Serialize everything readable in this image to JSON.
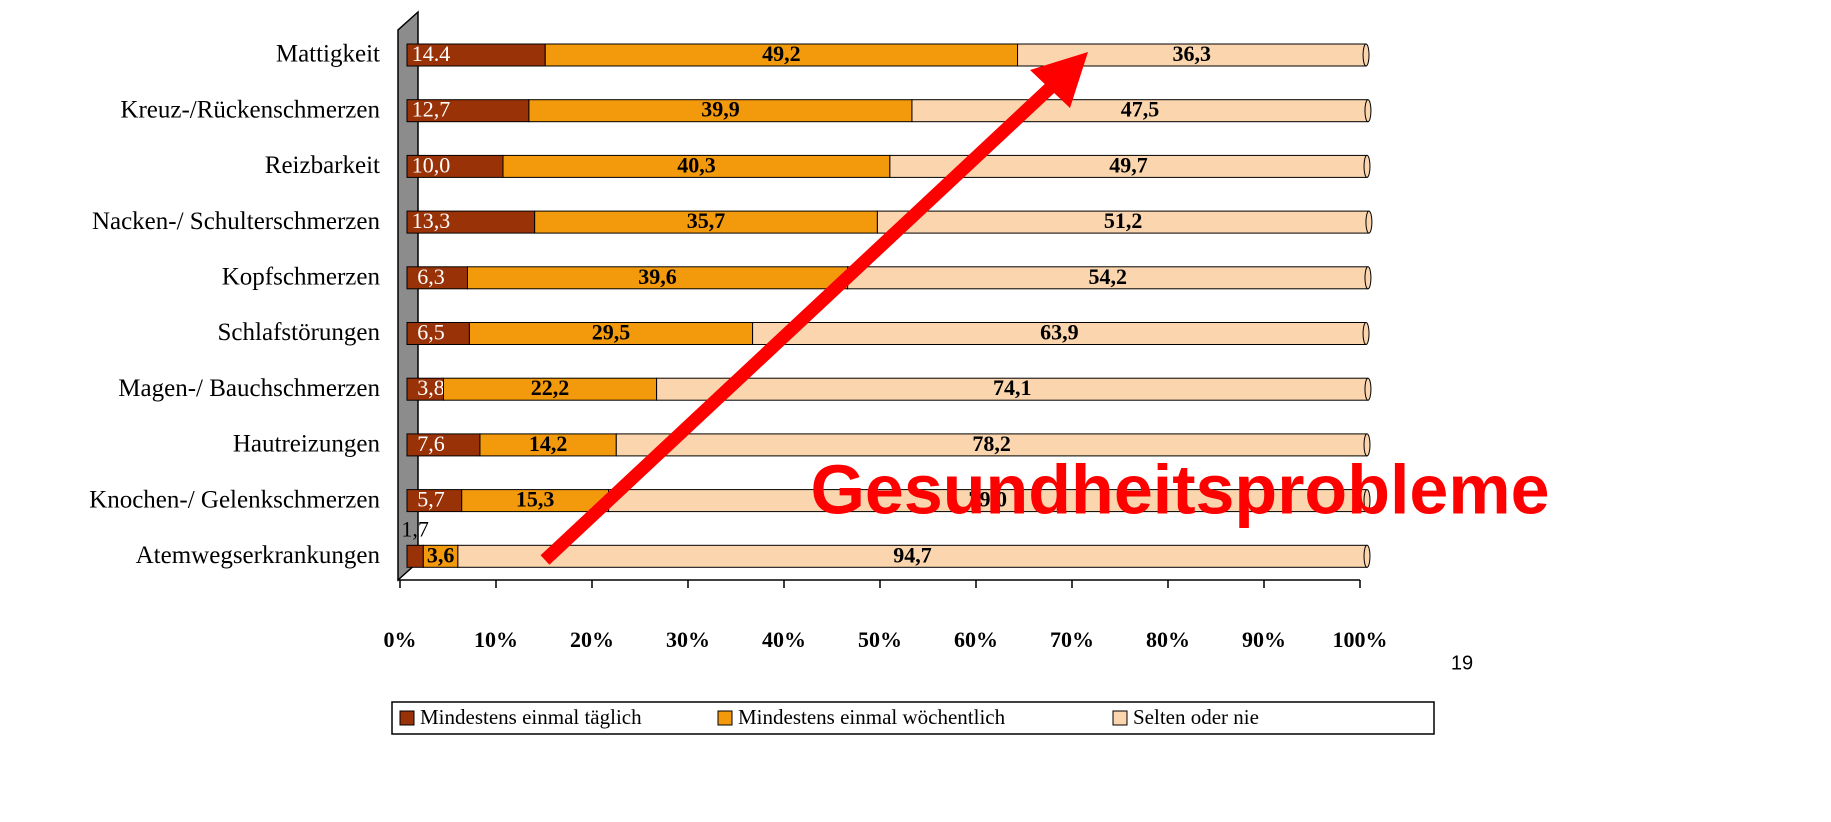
{
  "chart_data": {
    "type": "stacked-bar-horizontal",
    "categories": [
      "Mattigkeit",
      "Kreuz-/Rückenschmerzen",
      "Reizbarkeit",
      "Nacken-/ Schulterschmerzen",
      "Kopfschmerzen",
      "Schlafstörungen",
      "Magen-/ Bauchschmerzen",
      "Hautreizungen",
      "Knochen-/ Gelenkschmerzen",
      "Atemwegserkrankungen"
    ],
    "series": [
      {
        "name": "Mindestens einmal täglich",
        "color": "#9a3208",
        "values": [
          14.4,
          12.7,
          10.0,
          13.3,
          6.3,
          6.5,
          3.8,
          7.6,
          5.7,
          1.7
        ],
        "value_labels": [
          "14.4",
          "12,7",
          "10,0",
          "13,3",
          "6,3",
          "6,5",
          "3,8",
          "7,6",
          "5,7",
          "1,7"
        ]
      },
      {
        "name": "Mindestens einmal wöchentlich",
        "color": "#f39a0c",
        "values": [
          49.2,
          39.9,
          40.3,
          35.7,
          39.6,
          29.5,
          22.2,
          14.2,
          15.3,
          3.6
        ],
        "value_labels": [
          "49,2",
          "39,9",
          "40,3",
          "35,7",
          "39,6",
          "29,5",
          "22,2",
          "14,2",
          "15,3",
          "3,6"
        ]
      },
      {
        "name": "Selten oder nie",
        "color": "#fad5ad",
        "values": [
          36.3,
          47.5,
          49.7,
          51.2,
          54.2,
          63.9,
          74.1,
          78.2,
          79.0,
          94.7
        ],
        "value_labels": [
          "36,3",
          "47,5",
          "49,7",
          "51,2",
          "54,2",
          "63,9",
          "74,1",
          "78,2",
          "79,0",
          "94,7"
        ]
      }
    ],
    "xlim": [
      0,
      100
    ],
    "xticks": [
      {
        "value": 0,
        "label": "0%"
      },
      {
        "value": 10,
        "label": "10%"
      },
      {
        "value": 20,
        "label": "20%"
      },
      {
        "value": 30,
        "label": "30%"
      },
      {
        "value": 40,
        "label": "40%"
      },
      {
        "value": 50,
        "label": "50%"
      },
      {
        "value": 60,
        "label": "60%"
      },
      {
        "value": 70,
        "label": "70%"
      },
      {
        "value": 80,
        "label": "80%"
      },
      {
        "value": 90,
        "label": "90%"
      },
      {
        "value": 100,
        "label": "100%"
      }
    ],
    "legend": "bottom",
    "annotation": "Gesundheitsprobleme",
    "page_number": "19"
  }
}
